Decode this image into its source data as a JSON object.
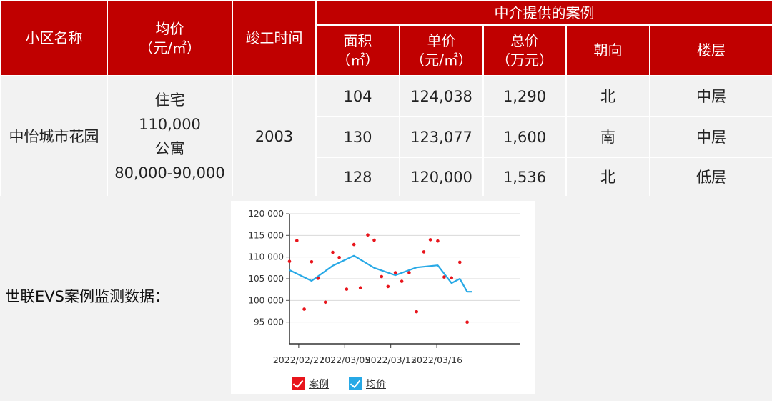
{
  "table": {
    "headers": {
      "community": "小区名称",
      "avg_price_line1": "均价",
      "avg_price_line2": "（元/㎡）",
      "completion": "竣工时间",
      "agency_group": "中介提供的案例",
      "area_line1": "面积",
      "area_line2": "（㎡）",
      "unit_price_line1": "单价",
      "unit_price_line2": "（元/㎡）",
      "total_price_line1": "总价",
      "total_price_line2": "（万元）",
      "orientation": "朝向",
      "floor": "楼层"
    },
    "community_name": "中怡城市花园",
    "avg_price_lines": [
      "住宅",
      "110,000",
      "公寓",
      "80,000-90,000"
    ],
    "completion_year": "2003",
    "cases": [
      {
        "area": "104",
        "unit_price": "124,038",
        "total_price": "1,290",
        "orientation": "北",
        "floor": "中层"
      },
      {
        "area": "130",
        "unit_price": "123,077",
        "total_price": "1,600",
        "orientation": "南",
        "floor": "中层"
      },
      {
        "area": "128",
        "unit_price": "120,000",
        "total_price": "1,536",
        "orientation": "北",
        "floor": "低层"
      }
    ]
  },
  "evs_label": "世联EVS案例监测数据：",
  "chart_data": {
    "type": "scatter",
    "x_range": [
      0,
      25
    ],
    "ylim": [
      90000,
      120000
    ],
    "yticks": [
      95000,
      100000,
      105000,
      110000,
      115000,
      120000
    ],
    "ytick_labels": [
      "95 000",
      "100 000",
      "105 000",
      "110 000",
      "115 000",
      "120 000"
    ],
    "xticks": [
      {
        "pos": 1,
        "label": "2022/02/27"
      },
      {
        "pos": 6,
        "label": "2022/03/05"
      },
      {
        "pos": 11,
        "label": "2022/03/13"
      },
      {
        "pos": 16,
        "label": "2022/03/16"
      }
    ],
    "series": [
      {
        "name": "案例",
        "kind": "scatter",
        "color": "#e8141b",
        "points": [
          [
            0,
            109000
          ],
          [
            0.8,
            113800
          ],
          [
            1.6,
            98000
          ],
          [
            2.4,
            108900
          ],
          [
            3.1,
            105100
          ],
          [
            3.9,
            99600
          ],
          [
            4.7,
            111100
          ],
          [
            5.4,
            109900
          ],
          [
            6.2,
            102600
          ],
          [
            7.0,
            112900
          ],
          [
            7.7,
            102900
          ],
          [
            8.5,
            115100
          ],
          [
            9.2,
            113900
          ],
          [
            10.0,
            105500
          ],
          [
            10.7,
            103200
          ],
          [
            11.5,
            106400
          ],
          [
            12.2,
            104400
          ],
          [
            13.0,
            106400
          ],
          [
            13.8,
            97400
          ],
          [
            14.6,
            111200
          ],
          [
            15.3,
            114000
          ],
          [
            16.1,
            113700
          ],
          [
            16.8,
            105400
          ],
          [
            17.6,
            105200
          ],
          [
            18.5,
            108800
          ],
          [
            19.3,
            95000
          ]
        ]
      },
      {
        "name": "均价",
        "kind": "line",
        "color": "#28a9e6",
        "points": [
          [
            0,
            107000
          ],
          [
            2.4,
            104500
          ],
          [
            4.7,
            108000
          ],
          [
            7.0,
            110300
          ],
          [
            9.2,
            107500
          ],
          [
            11.5,
            105800
          ],
          [
            13.8,
            107600
          ],
          [
            16.1,
            108100
          ],
          [
            17.6,
            104000
          ],
          [
            18.5,
            105000
          ],
          [
            19.3,
            102000
          ],
          [
            19.8,
            102000
          ]
        ]
      }
    ],
    "legend": [
      {
        "label": "案例",
        "color": "#e8141b"
      },
      {
        "label": "均价",
        "color": "#28a9e6"
      }
    ]
  }
}
